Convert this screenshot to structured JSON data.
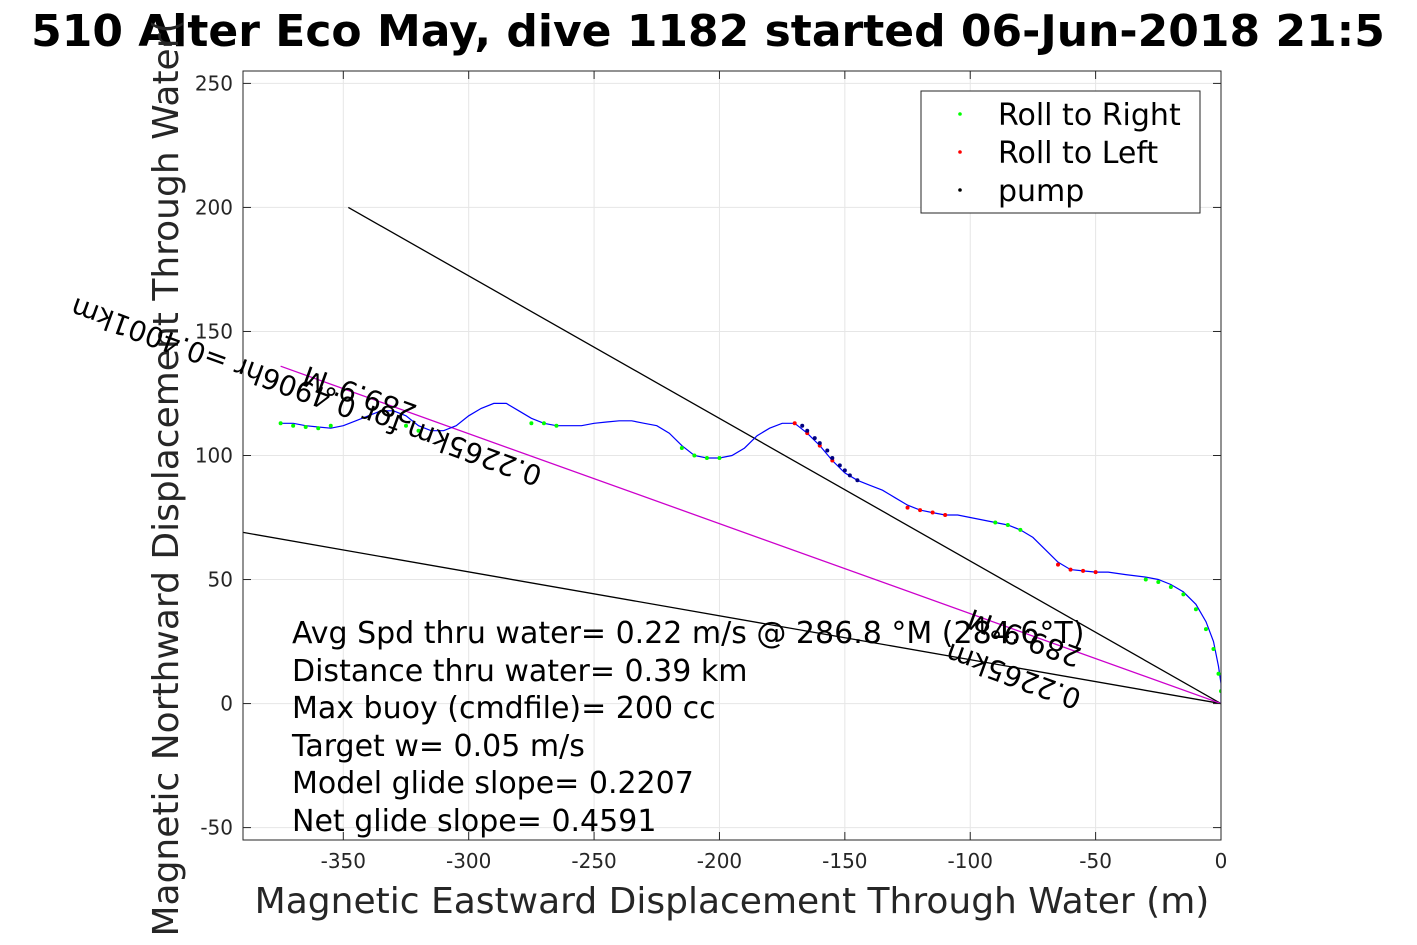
{
  "chart_data": {
    "type": "line",
    "title": "510 Alter Eco May, dive 1182 started 06-Jun-2018 21:5",
    "xlabel": "Magnetic Eastward Displacement Through Water (m)",
    "ylabel": "Magnetic Northward Displacement Through Water(",
    "xlim": [
      -390,
      0
    ],
    "ylim": [
      -55,
      255
    ],
    "xticks": [
      -350,
      -300,
      -250,
      -200,
      -150,
      -100,
      -50,
      0
    ],
    "yticks": [
      -50,
      0,
      50,
      100,
      150,
      200,
      250
    ],
    "grid": true,
    "legend": {
      "position": "top-right",
      "entries": [
        {
          "label": "Roll to Right",
          "color": "#00ff00"
        },
        {
          "label": "Roll to Left",
          "color": "#ff0000"
        },
        {
          "label": "pump",
          "color": "#000000"
        }
      ]
    },
    "track": {
      "color": "#0000ff",
      "x": [
        0,
        0,
        -1,
        -3,
        -6,
        -10,
        -15,
        -20,
        -25,
        -30,
        -38,
        -45,
        -50,
        -55,
        -60,
        -65,
        -70,
        -75,
        -80,
        -85,
        -90,
        -95,
        -100,
        -105,
        -110,
        -115,
        -120,
        -125,
        -130,
        -135,
        -140,
        -145,
        -150,
        -155,
        -160,
        -165,
        -170,
        -175,
        -180,
        -185,
        -190,
        -195,
        -200,
        -205,
        -210,
        -215,
        -220,
        -225,
        -230,
        -235,
        -240,
        -245,
        -250,
        -255,
        -260,
        -265,
        -270,
        -275,
        -280,
        -285,
        -290,
        -295,
        -300,
        -305,
        -310,
        -315,
        -320,
        -325,
        -330,
        -335,
        -340,
        -345,
        -350,
        -355,
        -360,
        -365,
        -370,
        -375
      ],
      "y": [
        0,
        8,
        15,
        25,
        33,
        40,
        45,
        48,
        50,
        51,
        52,
        53,
        53,
        53.5,
        54,
        57,
        62,
        67,
        70,
        72,
        73,
        74,
        75,
        76,
        76,
        77,
        78,
        80,
        83,
        86,
        88,
        90,
        93,
        98,
        104,
        109,
        113,
        113,
        111,
        108,
        103,
        100,
        99,
        99,
        100,
        104,
        109,
        112,
        113,
        114,
        114,
        113.5,
        113,
        112,
        112,
        112,
        113,
        115,
        118,
        121,
        121,
        119,
        116,
        112,
        110,
        110,
        112,
        116,
        118,
        118,
        116,
        114,
        112,
        111,
        111.5,
        112,
        113,
        113
      ]
    },
    "roll_right": {
      "x": [
        0,
        -1,
        -3,
        -6,
        -10,
        -15,
        -20,
        -25,
        -30,
        -80,
        -85,
        -90,
        -200,
        -205,
        -210,
        -215,
        -265,
        -270,
        -275,
        -320,
        -325,
        -355,
        -360,
        -365,
        -370,
        -375
      ],
      "y": [
        5,
        12,
        22,
        30,
        38,
        44,
        47,
        49,
        50,
        70,
        72,
        73,
        99,
        99,
        100,
        103,
        112,
        113,
        113,
        110,
        112,
        112,
        111,
        111.5,
        112,
        113
      ]
    },
    "roll_left": {
      "x": [
        -50,
        -55,
        -60,
        -65,
        -110,
        -115,
        -120,
        -125,
        -155,
        -160,
        -165,
        -170
      ],
      "y": [
        53,
        53.5,
        54,
        56,
        76,
        77,
        78,
        79,
        98,
        104,
        109,
        113
      ]
    },
    "pump": {
      "x": [
        -145,
        -148,
        -150,
        -152,
        -155,
        -157,
        -160,
        -162,
        -165,
        -167
      ],
      "y": [
        90,
        92,
        94,
        96,
        99,
        102,
        105,
        107,
        110,
        112
      ]
    },
    "lines": [
      {
        "name": "line-black-upper",
        "color": "#000000",
        "x": [
          0,
          -348
        ],
        "y": [
          0,
          200
        ]
      },
      {
        "name": "line-black-lower",
        "color": "#000000",
        "x": [
          0,
          -390
        ],
        "y": [
          0,
          69
        ]
      },
      {
        "name": "line-magenta",
        "color": "#cc00cc",
        "x": [
          0,
          -375
        ],
        "y": [
          0,
          136
        ]
      }
    ],
    "line_labels": [
      {
        "text": "289.9°M",
        "x": -320,
        "y": 120,
        "angle": 200
      },
      {
        "text": "0.2265km for 0.4906hr =0.4001km",
        "x": -270,
        "y": 95,
        "angle": 200
      },
      {
        "text": "289.9°M",
        "x": -55,
        "y": 22,
        "angle": 200
      },
      {
        "text": "0.2265km",
        "x": -55,
        "y": 5,
        "angle": 200
      }
    ],
    "annotations": [
      "Avg Spd thru water=  0.22 m/s @ 286.8 °M (284.6°T)",
      "Distance thru water=  0.39 km",
      "Max buoy (cmdfile)= 200 cc",
      "Target w= 0.05 m/s",
      "Model glide slope= 0.2207",
      "Net glide slope= 0.4591"
    ]
  }
}
